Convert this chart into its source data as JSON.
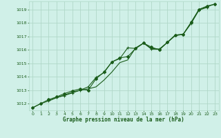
{
  "title": "Graphe pression niveau de la mer (hPa)",
  "background_color": "#d0f0e8",
  "grid_color": "#b0d8c8",
  "line_color": "#1a5c1a",
  "marker_color": "#1a5c1a",
  "xlabel_color": "#1a5c1a",
  "x_ticks": [
    0,
    1,
    2,
    3,
    4,
    5,
    6,
    7,
    8,
    9,
    10,
    11,
    12,
    13,
    14,
    15,
    16,
    17,
    18,
    19,
    20,
    21,
    22,
    23
  ],
  "y_ticks": [
    1012,
    1013,
    1014,
    1015,
    1016,
    1017,
    1018,
    1019
  ],
  "ylim": [
    1011.5,
    1019.6
  ],
  "xlim": [
    -0.5,
    23.5
  ],
  "line1_x": [
    0,
    1,
    2,
    3,
    4,
    5,
    6,
    7,
    8,
    9,
    10,
    11,
    12,
    13,
    14,
    15,
    16,
    17,
    18,
    19,
    20,
    21,
    22,
    23
  ],
  "line1_y": [
    1011.7,
    1012.0,
    1012.2,
    1012.45,
    1012.65,
    1012.85,
    1013.0,
    1013.1,
    1013.25,
    1013.75,
    1014.35,
    1015.05,
    1015.25,
    1016.15,
    1016.5,
    1016.1,
    1016.05,
    1016.55,
    1017.05,
    1017.15,
    1018.0,
    1019.0,
    1019.2,
    1019.4
  ],
  "line2_x": [
    0,
    1,
    2,
    3,
    4,
    5,
    6,
    7,
    8,
    9,
    10,
    11,
    12,
    13,
    14,
    15,
    16,
    17,
    18,
    19,
    20,
    21,
    22,
    23
  ],
  "line2_y": [
    1011.7,
    1012.0,
    1012.3,
    1012.5,
    1012.75,
    1012.95,
    1013.1,
    1013.0,
    1013.85,
    1014.35,
    1015.1,
    1015.4,
    1015.5,
    1016.1,
    1016.5,
    1016.2,
    1016.0,
    1016.55,
    1017.1,
    1017.15,
    1018.05,
    1019.0,
    1019.25,
    1019.4
  ],
  "line3_x": [
    2,
    3,
    4,
    5,
    6,
    7,
    8,
    9,
    10,
    11,
    12,
    13,
    14,
    15,
    16,
    17,
    18,
    19,
    20,
    21,
    22
  ],
  "line3_y": [
    1012.2,
    1012.45,
    1012.6,
    1012.8,
    1013.0,
    1013.25,
    1013.95,
    1014.3,
    1015.1,
    1015.35,
    1016.15,
    1016.1,
    1016.5,
    1016.05,
    1016.05,
    1016.55,
    1017.1,
    1017.15,
    1017.95,
    1018.95,
    1019.15
  ]
}
